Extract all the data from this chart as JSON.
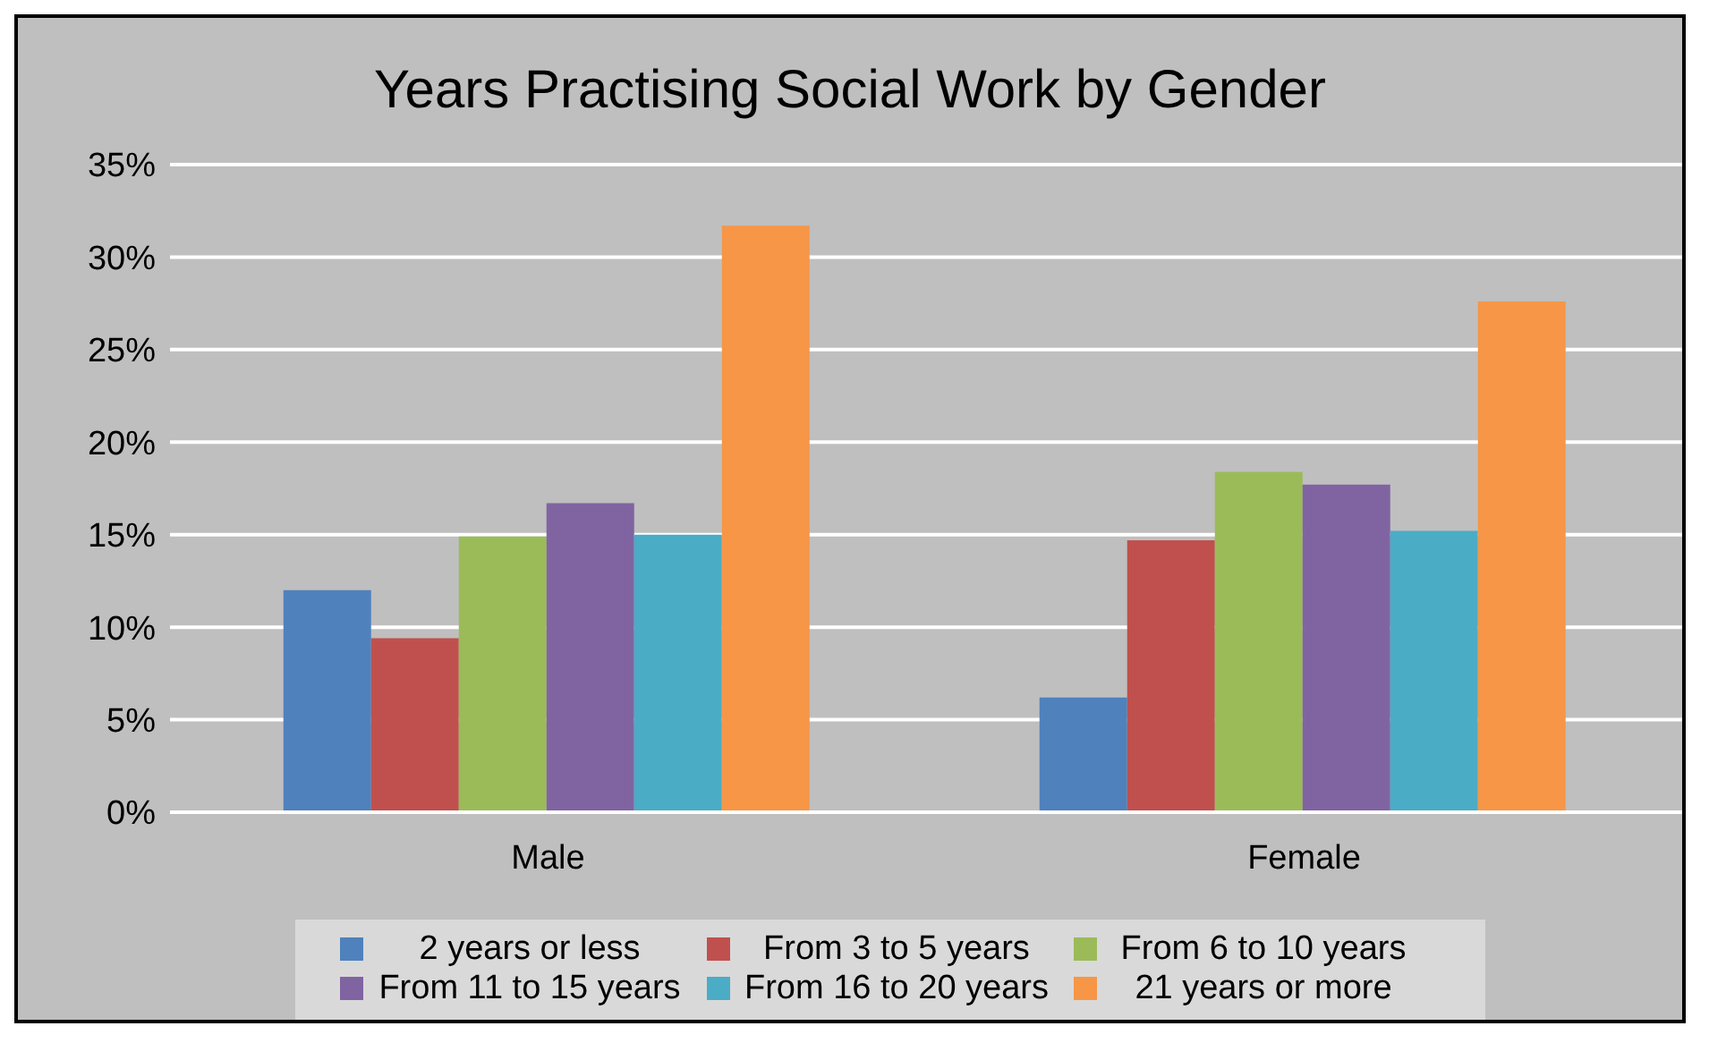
{
  "chart_data": {
    "type": "bar",
    "title": "Years Practising Social Work by Gender",
    "categories": [
      "Male",
      "Female"
    ],
    "series": [
      {
        "name": "2 years or less",
        "color": "#4f81bd",
        "values": [
          12,
          6.2
        ]
      },
      {
        "name": "From 3 to 5 years",
        "color": "#c0504d",
        "values": [
          9.4,
          14.7
        ]
      },
      {
        "name": "From 6 to 10 years",
        "color": "#9bbb59",
        "values": [
          14.9,
          18.4
        ]
      },
      {
        "name": "From 11 to 15 years",
        "color": "#8064a2",
        "values": [
          16.7,
          17.7
        ]
      },
      {
        "name": "From 16 to 20 years",
        "color": "#4bacc6",
        "values": [
          15,
          15.2
        ]
      },
      {
        "name": "21 years or more",
        "color": "#f79646",
        "values": [
          31.7,
          27.6
        ]
      }
    ],
    "ylim": [
      0,
      35
    ],
    "yticks": [
      {
        "value": 0,
        "label": "0%"
      },
      {
        "value": 5,
        "label": "5%"
      },
      {
        "value": 10,
        "label": "10%"
      },
      {
        "value": 15,
        "label": "15%"
      },
      {
        "value": 20,
        "label": "20%"
      },
      {
        "value": 25,
        "label": "25%"
      },
      {
        "value": 30,
        "label": "30%"
      },
      {
        "value": 35,
        "label": "35%"
      }
    ],
    "grid": "y",
    "legend": "bottom"
  }
}
